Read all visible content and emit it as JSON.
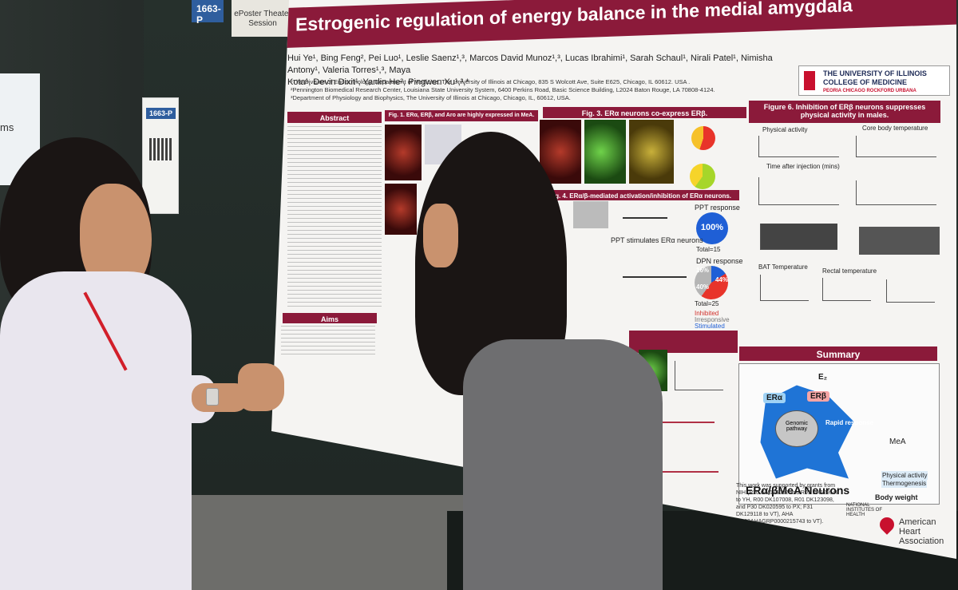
{
  "booth": {
    "tag": "1663-P",
    "theater_label": "ePoster Theater Session"
  },
  "poster": {
    "title": "Estrogenic regulation of energy balance in the medial amygdala",
    "authors_line1": "Hui Ye¹, Bing Feng², Pei Luo¹, Leslie Saenz¹,³, Marcos David Munoz¹,³, Lucas Ibrahimi¹, Sarah Schaul¹, Nirali Patel¹, Nimisha Antony¹, Valeria Torres¹,³, Maya",
    "authors_line2": "Kota¹, Devin Dixit¹, Yanlin He², Pingwen Xu¹,³,*",
    "affiliation1": "¹The Division of Endocrinology, Department of Medicine, The University of Illinois at Chicago, 835 S Wolcott Ave, Suite E625, Chicago, IL 60612. USA .",
    "affiliation2": "²Pennington Biomedical Research Center, Louisiana State University System, 6400 Perkins Road, Basic Science Building, L2024 Baton Rouge, LA 70808-4124.",
    "affiliation3": "³Department of Physiology and Biophysics, The University of Illinois at Chicago, Chicago, IL, 60612, USA.",
    "institution_line1": "THE UNIVERSITY OF ILLINOIS",
    "institution_line2": "COLLEGE OF MEDICINE",
    "institution_line3": "PEORIA CHICAGO ROCKFORD URBANA",
    "sections": {
      "abstract": "Abstract",
      "aims": "Aims",
      "fig1": "Fig. 1. ERα, ERβ, and Aro are highly expressed in MeA.",
      "fig3": "Fig. 3. ERα neurons co-express ERβ.",
      "fig4": "Fig. 4. ERα/β-mediated activation/inhibition of ERα neurons.",
      "fig6": "Figure 6. Inhibition of ERβ neurons suppresses physical activity in males.",
      "summary": "Summary"
    },
    "fig4_labels": {
      "ppt_response": "PPT response",
      "ppt_stimulates": "PPT stimulates ERα neurons",
      "ppt_pct": "100%",
      "ppt_total": "Total=15",
      "dpn_response": "DPN response",
      "dpn_pct_a": "16%",
      "dpn_pct_b": "40%",
      "dpn_pct_c": "44%",
      "dpn_total": "Total=25",
      "inhibited": "Inhibited",
      "irresponsive": "Irresponsive",
      "stimulated": "Stimulated"
    },
    "fig6_labels": {
      "physical_activity": "Physical activity",
      "core_temp": "Core body temperature",
      "bat_temp": "BAT Temperature",
      "rectal_temp": "Rectal temperature",
      "time_after": "Time after injection (mins)"
    },
    "summary": {
      "genomic": "Genomic pathway",
      "rapid": "Rapid response",
      "era": "ERα",
      "erb": "ERβ",
      "e2": "E₂",
      "neurons": "ERα/βMeA Neurons",
      "mea": "MeA",
      "physical": "Physical activity",
      "thermo": "Thermogenesis",
      "body_weight": "Body weight"
    },
    "funding": "This work was supported by grants from NIH (P20 GM135002 and R01 DK129548 to YH, R00 DK107008, R01 DK123098, and P30 DK020595 to PX; F31 DK129118 to VT), AHA (2022AHAGRP0000215743 to VT).",
    "nih": "NATIONAL INSTITUTES OF HEALTH",
    "aha": "American Heart Association"
  },
  "left_sign_text": "ms"
}
